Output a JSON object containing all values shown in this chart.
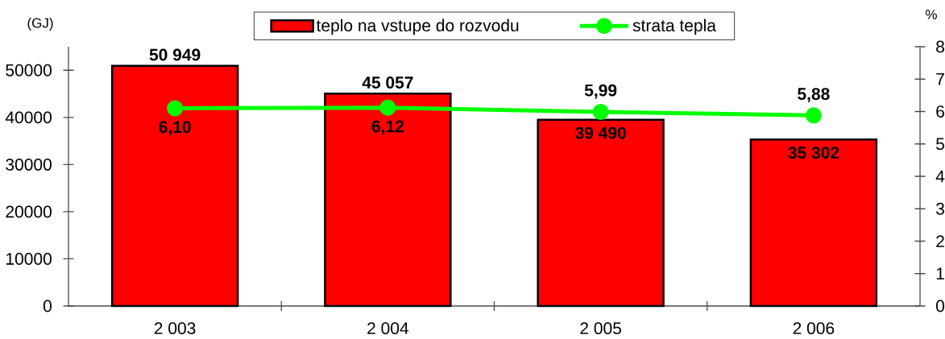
{
  "chart_data": {
    "type": "bar",
    "categories": [
      "2 003",
      "2 004",
      "2 005",
      "2 006"
    ],
    "ylabel": "(GJ)",
    "y2label": "%",
    "ylim": [
      0,
      55000
    ],
    "yticks": [
      0,
      10000,
      20000,
      30000,
      40000,
      50000
    ],
    "y2lim": [
      0,
      8
    ],
    "y2ticks": [
      0,
      1,
      2,
      3,
      4,
      5,
      6,
      7,
      8
    ],
    "series": [
      {
        "name": "teplo na vstupe do rozvodu",
        "color": "#ff0000",
        "values": [
          50949,
          45057,
          39490,
          35302
        ],
        "value_labels": [
          "50 949",
          "45 057",
          "39 490",
          "35 302"
        ]
      },
      {
        "name": "strata tepla",
        "type": "line",
        "axis": "y2",
        "color": "#00ff00",
        "marker": "circle",
        "values": [
          6.1,
          6.12,
          5.99,
          5.88
        ],
        "value_labels": [
          "6,10",
          "6,12",
          "5,99",
          "5,88"
        ]
      }
    ],
    "legend": "top"
  }
}
